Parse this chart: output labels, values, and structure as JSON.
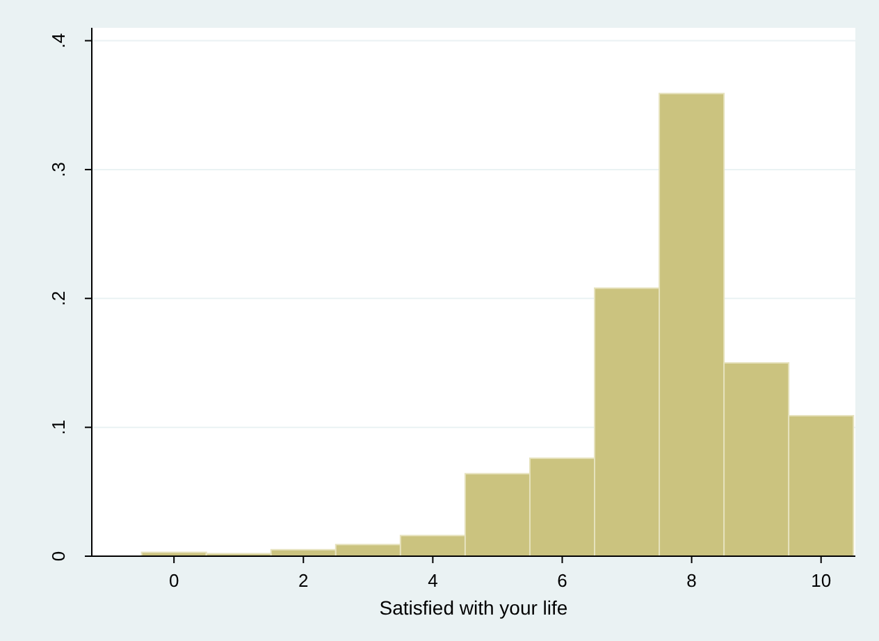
{
  "chart_data": {
    "type": "histogram",
    "xlabel": "Satisfied with your life",
    "bins": [
      -0.5,
      0.5,
      1.5,
      2.5,
      3.5,
      4.5,
      5.5,
      6.5,
      7.5,
      8.5,
      9.5,
      10.5
    ],
    "values": [
      0.003,
      0.002,
      0.005,
      0.009,
      0.016,
      0.064,
      0.076,
      0.208,
      0.359,
      0.15,
      0.109
    ],
    "color": "#cbc37f",
    "xlim": [
      -1.27,
      10.53
    ],
    "xticks": [
      0,
      2,
      4,
      6,
      8,
      10
    ],
    "ylim": [
      0,
      0.41
    ],
    "yticks": [
      0,
      {
        "value": 0.1,
        "label": ".1"
      },
      {
        "value": 0.2,
        "label": ".2"
      },
      {
        "value": 0.3,
        "label": ".3"
      },
      {
        "value": 0.4,
        "label": ".4"
      }
    ],
    "grid": "y"
  }
}
